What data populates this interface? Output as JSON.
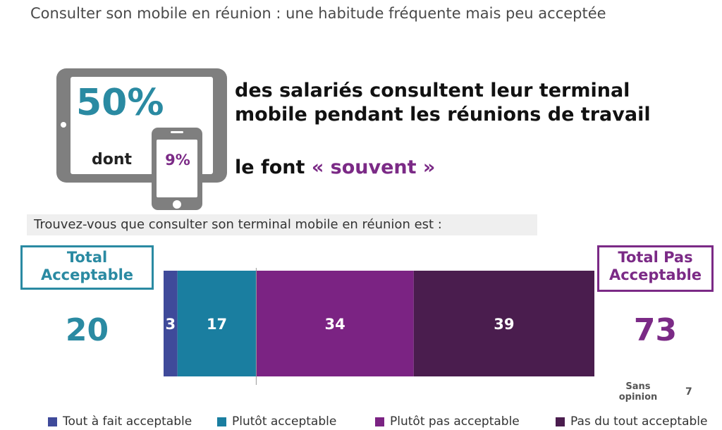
{
  "title": "Consulter son mobile en réunion : une habitude fréquente mais peu acceptée",
  "highlight": {
    "main_percent": "50%",
    "dont_label": "dont",
    "sub_percent": "9%",
    "headline_line1": "des salariés consultent leur terminal",
    "headline_line2": "mobile pendant les réunions de travail",
    "subline_prefix": "le font",
    "subline_accent": "« souvent »"
  },
  "question": "Trouvez-vous que consulter son terminal mobile en réunion est :",
  "totals": {
    "acceptable_label_1": "Total",
    "acceptable_label_2": "Acceptable",
    "acceptable_value": "20",
    "not_acceptable_label_1": "Total Pas",
    "not_acceptable_label_2": "Acceptable",
    "not_acceptable_value": "73"
  },
  "chart_data": {
    "type": "bar",
    "orientation": "horizontal-stacked",
    "categories": [
      ""
    ],
    "series": [
      {
        "name": "Tout à fait acceptable",
        "values": [
          3
        ],
        "color": "#3f4a9a"
      },
      {
        "name": "Plutôt acceptable",
        "values": [
          17
        ],
        "color": "#1a7ea0"
      },
      {
        "name": "Plutôt pas acceptable",
        "values": [
          34
        ],
        "color": "#7b2383"
      },
      {
        "name": "Pas du tout acceptable",
        "values": [
          39
        ],
        "color": "#4a1d4e"
      }
    ],
    "sans_opinion_label": "Sans opinion",
    "sans_opinion_value": 7,
    "legend_position": "bottom"
  },
  "colors": {
    "teal": "#2a8aa2",
    "purple": "#7b2a86",
    "device_gray": "#7f7f7f"
  }
}
